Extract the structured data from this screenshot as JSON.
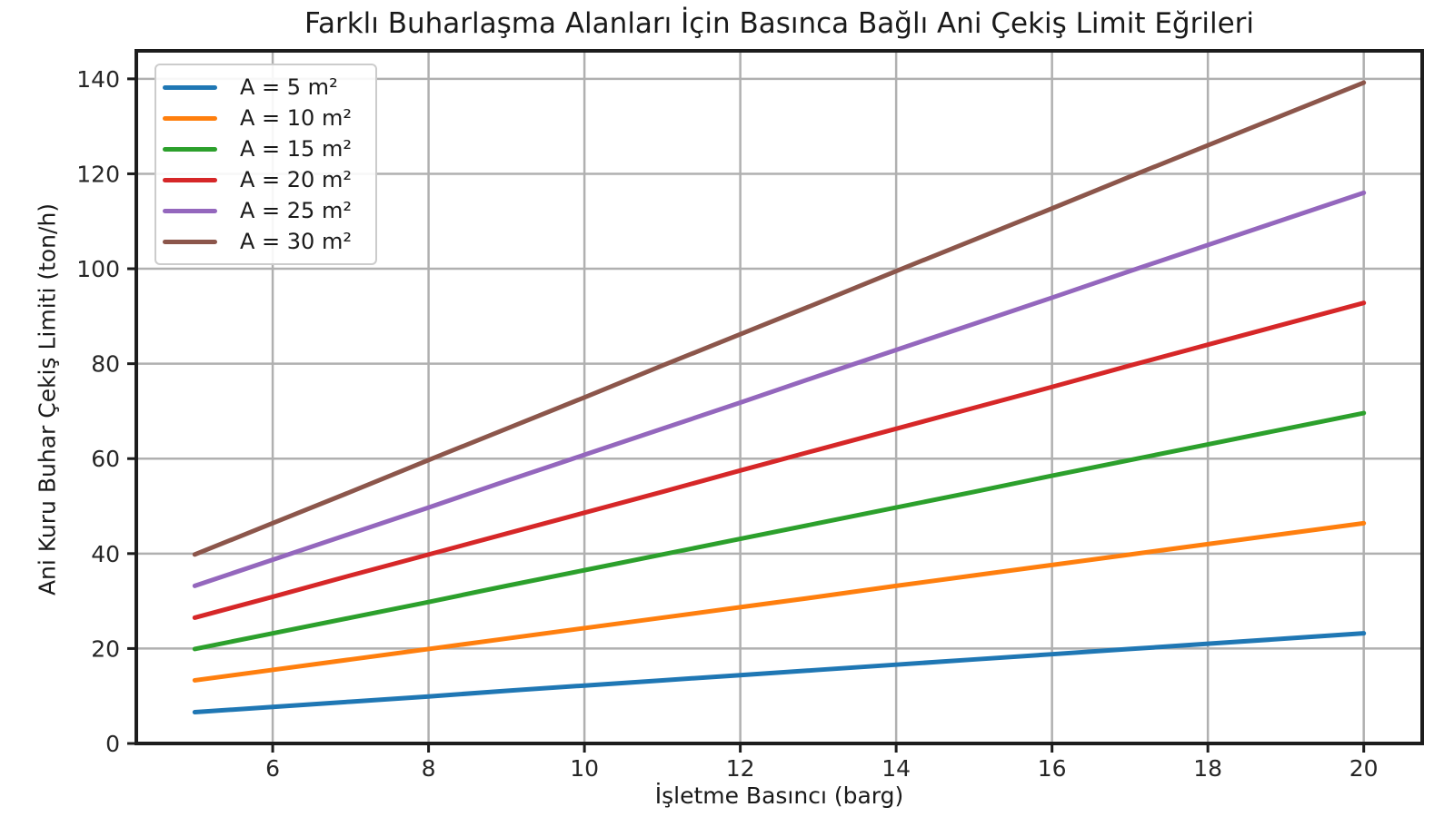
{
  "chart_data": {
    "type": "line",
    "title": "Farklı Buharlaşma Alanları İçin Basınca Bağlı Ani Çekiş Limit Eğrileri",
    "xlabel": "İşletme Basıncı (barg)",
    "ylabel": "Ani Kuru Buhar Çekiş Limiti (ton/h)",
    "x": [
      5,
      6,
      7,
      8,
      9,
      10,
      11,
      12,
      13,
      14,
      15,
      16,
      17,
      18,
      19,
      20
    ],
    "series": [
      {
        "name": "A = 5 m²",
        "color": "#1f77b4",
        "values": [
          6.6,
          7.7,
          8.8,
          9.9,
          11.1,
          12.2,
          13.3,
          14.4,
          15.5,
          16.6,
          17.7,
          18.8,
          19.9,
          21.0,
          22.1,
          23.2
        ]
      },
      {
        "name": "A = 10 m²",
        "color": "#ff7f0e",
        "values": [
          13.3,
          15.5,
          17.7,
          19.9,
          22.1,
          24.3,
          26.5,
          28.7,
          30.9,
          33.2,
          35.4,
          37.6,
          39.8,
          42.0,
          44.2,
          46.4
        ]
      },
      {
        "name": "A = 15 m²",
        "color": "#2ca02c",
        "values": [
          19.9,
          23.2,
          26.5,
          29.8,
          33.2,
          36.5,
          39.8,
          43.1,
          46.4,
          49.7,
          53.0,
          56.4,
          59.7,
          63.0,
          66.3,
          69.6
        ]
      },
      {
        "name": "A = 20 m²",
        "color": "#d62728",
        "values": [
          26.5,
          30.9,
          35.4,
          39.8,
          44.2,
          48.6,
          53.0,
          57.5,
          61.9,
          66.3,
          70.7,
          75.1,
          79.6,
          84.0,
          88.4,
          92.8
        ]
      },
      {
        "name": "A = 25 m²",
        "color": "#9467bd",
        "values": [
          33.2,
          38.7,
          44.2,
          49.7,
          55.3,
          60.8,
          66.3,
          71.8,
          77.4,
          82.9,
          88.4,
          93.9,
          99.5,
          105.0,
          110.5,
          116.0
        ]
      },
      {
        "name": "A = 30 m²",
        "color": "#8c564b",
        "values": [
          39.8,
          46.4,
          53.0,
          59.7,
          66.3,
          72.9,
          79.6,
          86.2,
          92.8,
          99.5,
          106.1,
          112.7,
          119.4,
          126.0,
          132.6,
          139.2
        ]
      }
    ],
    "xlim": [
      4.25,
      20.75
    ],
    "ylim": [
      0,
      145.9
    ],
    "xticks": [
      6,
      8,
      10,
      12,
      14,
      16,
      18,
      20
    ],
    "yticks": [
      0,
      20,
      40,
      60,
      80,
      100,
      120,
      140
    ],
    "grid": true,
    "legend_position": "upper-left",
    "colors": {
      "grid": "#b0b0b0",
      "spine": "#1d1d1d",
      "tick_text": "#262626",
      "background": "#ffffff"
    }
  }
}
